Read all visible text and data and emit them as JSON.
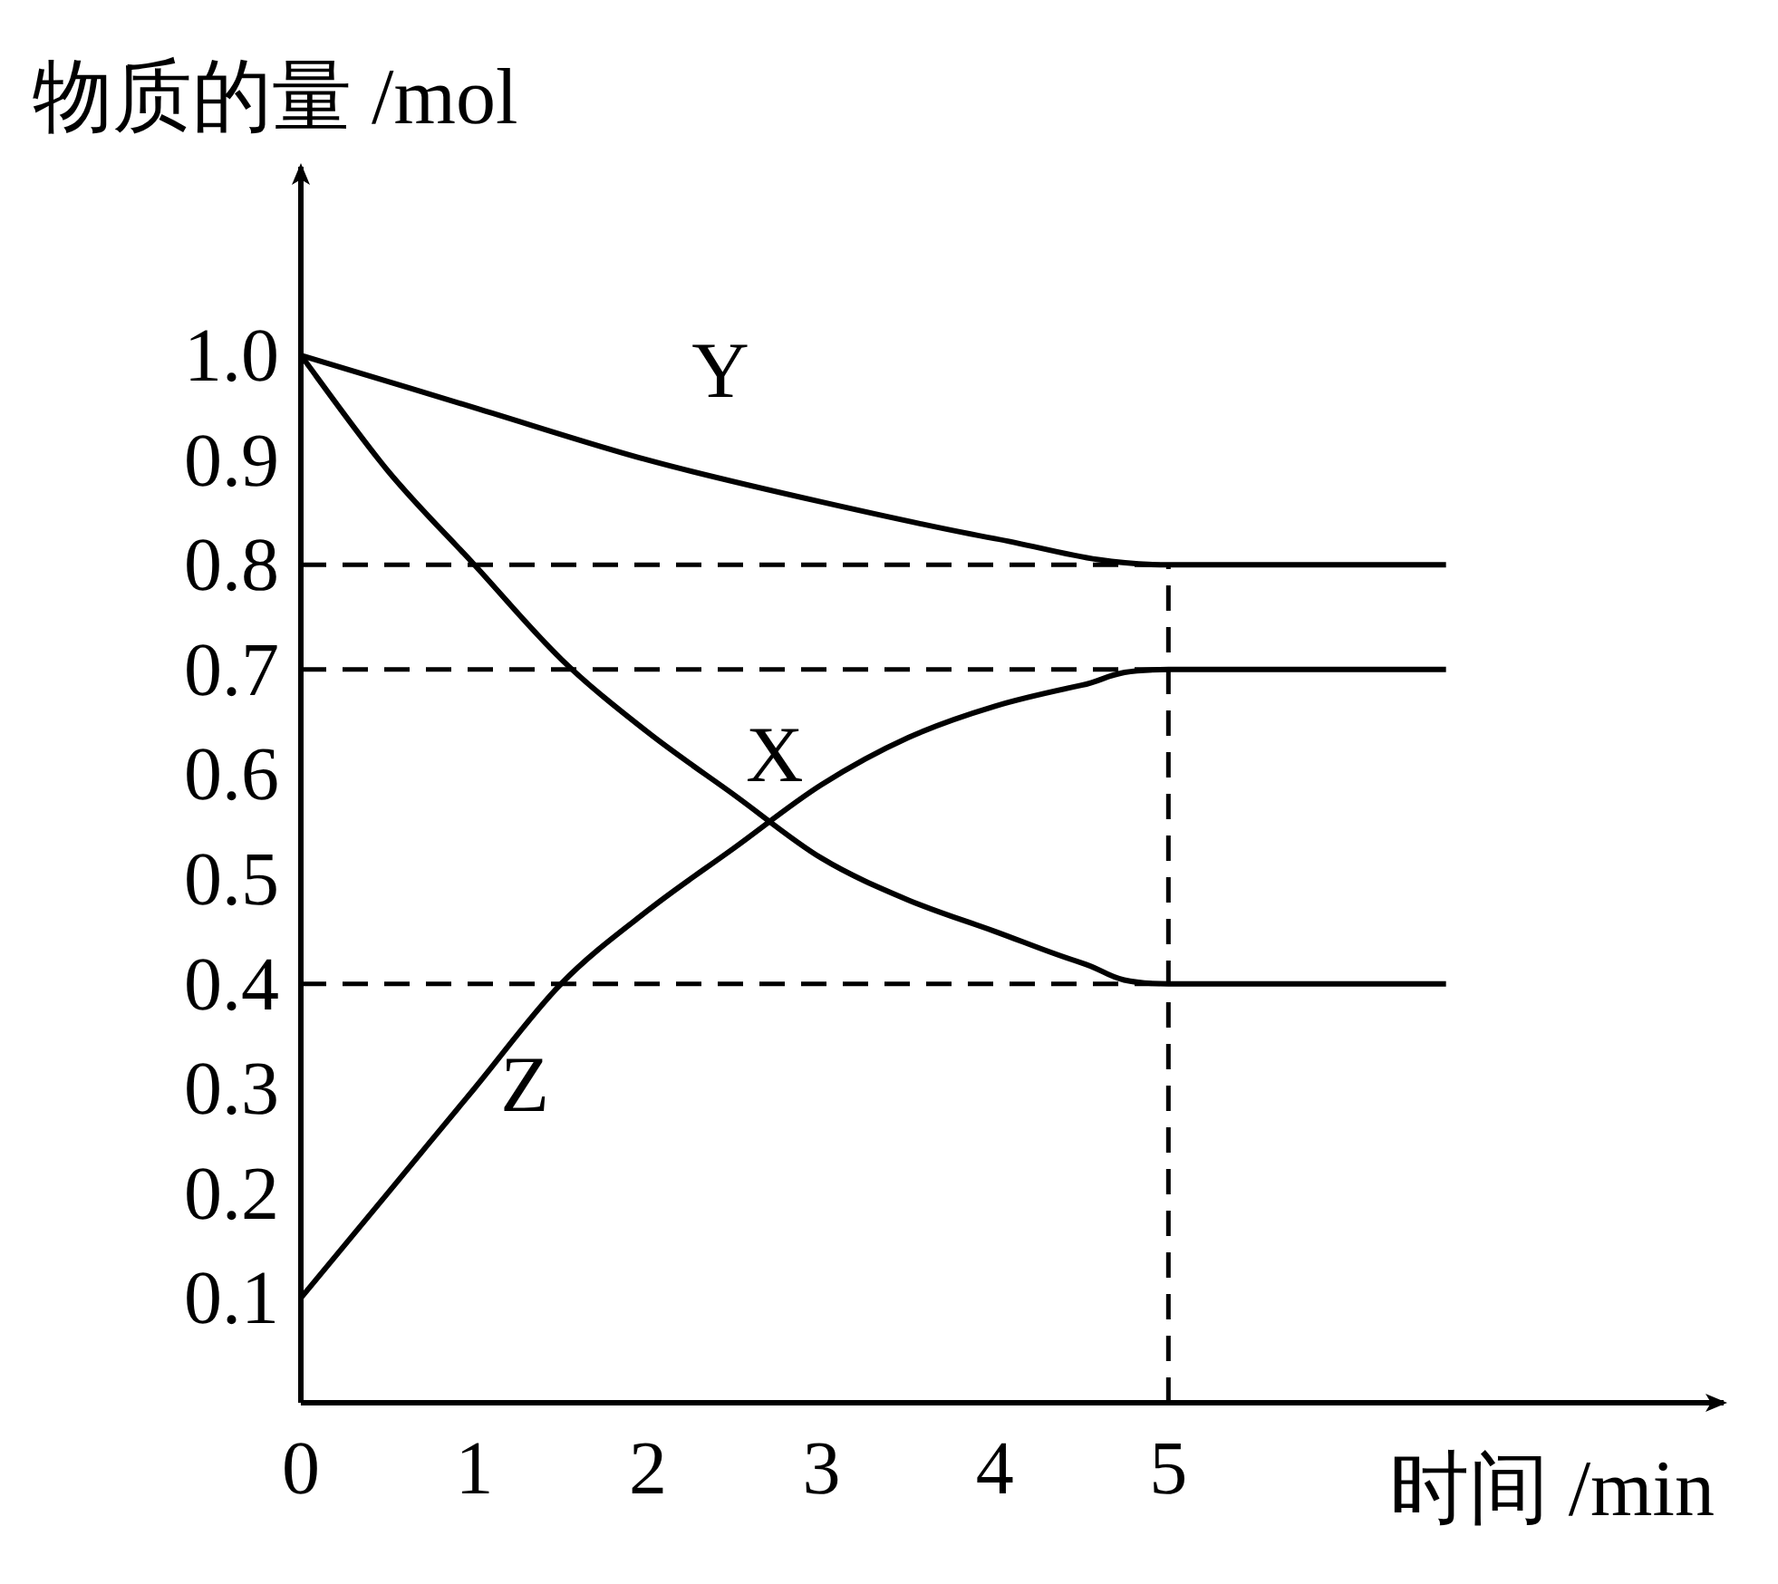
{
  "chart_data": {
    "type": "line",
    "xlabel": "时间 /min",
    "ylabel": "物质的量 /mol",
    "xlim": [
      0,
      8.2
    ],
    "ylim": [
      0,
      1.18
    ],
    "xticks": [
      0,
      1,
      2,
      3,
      4,
      5
    ],
    "yticks": [
      0.1,
      0.2,
      0.3,
      0.4,
      0.5,
      0.6,
      0.7,
      0.8,
      0.9,
      {
        "value": 1,
        "label": "1.0"
      }
    ],
    "grid": false,
    "marker": "none",
    "line_style": "solid",
    "series": [
      {
        "name": "Y",
        "color": "#000000",
        "x": [
          0,
          1,
          2,
          3,
          4,
          5,
          6.6
        ],
        "values": [
          1.0,
          0.95,
          0.9,
          0.86,
          0.825,
          0.8,
          0.8
        ]
      },
      {
        "name": "X",
        "color": "#000000",
        "x": [
          0,
          0.5,
          1,
          1.5,
          2,
          2.5,
          3,
          3.5,
          4,
          4.5,
          5,
          6.6
        ],
        "values": [
          1.0,
          0.89,
          0.8,
          0.71,
          0.64,
          0.58,
          0.52,
          0.48,
          0.45,
          0.42,
          0.4,
          0.4
        ]
      },
      {
        "name": "Z",
        "color": "#000000",
        "x": [
          0,
          0.5,
          1,
          1.5,
          2,
          2.5,
          3,
          3.5,
          4,
          4.5,
          5,
          6.6
        ],
        "values": [
          0.1,
          0.2,
          0.3,
          0.4,
          0.47,
          0.53,
          0.59,
          0.635,
          0.665,
          0.685,
          0.7,
          0.7
        ]
      }
    ],
    "ref_lines": [
      {
        "axis": "y",
        "value": 0.8,
        "color": "#000000",
        "line_style": "dashed"
      },
      {
        "axis": "y",
        "value": 0.7,
        "color": "#000000",
        "line_style": "dashed"
      },
      {
        "axis": "y",
        "value": 0.4,
        "color": "#000000",
        "line_style": "dashed"
      },
      {
        "axis": "x",
        "value": 5,
        "color": "#000000",
        "line_style": "dashed"
      }
    ]
  }
}
